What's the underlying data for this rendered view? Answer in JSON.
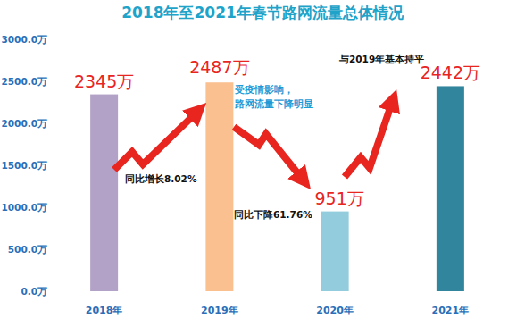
{
  "chart_data": {
    "type": "bar",
    "title": "2018年至2021年春节路网流量总体情况",
    "categories": [
      "2018年",
      "2019年",
      "2020年",
      "2021年"
    ],
    "values": [
      2345,
      2487,
      951,
      2442
    ],
    "value_labels": [
      "2345万",
      "2487万",
      "951万",
      "2442万"
    ],
    "colors": [
      "#b3a2c7",
      "#fac090",
      "#93cddd",
      "#31859c"
    ],
    "ylim": [
      0,
      3000
    ],
    "yticks": [
      {
        "value": 0,
        "label": "0.0万"
      },
      {
        "value": 500,
        "label": "500.0万"
      },
      {
        "value": 1000,
        "label": "1000.0万"
      },
      {
        "value": 1500,
        "label": "1500.0万"
      },
      {
        "value": 2000,
        "label": "2000.0万"
      },
      {
        "value": 2500,
        "label": "2500.0万"
      },
      {
        "value": 3000,
        "label": "3000.0万"
      }
    ],
    "grid": false,
    "data_labels": true,
    "annotations": [
      {
        "text": [
          "同比增长8.02%"
        ]
      },
      {
        "text": [
          "受疫情影响，",
          "路网流量下降明显"
        ]
      },
      {
        "text": [
          "同比下降61.76%"
        ]
      },
      {
        "text": [
          "与2019年基本持平"
        ]
      }
    ]
  }
}
